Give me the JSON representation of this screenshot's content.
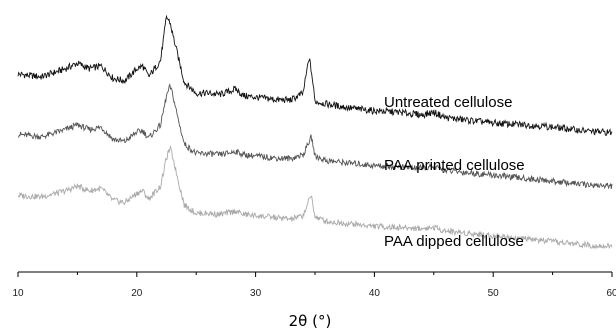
{
  "chart_data": {
    "type": "line",
    "title": "",
    "xlabel": "2θ (°)",
    "ylabel": "",
    "xlim": [
      10,
      60
    ],
    "xticks": [
      10,
      20,
      30,
      40,
      50,
      60
    ],
    "xtick_labels": [
      "10",
      "20",
      "30",
      "40",
      "50",
      "60"
    ],
    "grid": false,
    "legend": "inline-right",
    "note": "Vertically offset XRD patterns; y axis has no scale. Values are relative intensities (arbitrary units) estimated from the traces.",
    "x": [
      10,
      12,
      14,
      15,
      16,
      17,
      18,
      19,
      20,
      20.5,
      21,
      22,
      22.5,
      22.8,
      23,
      23.5,
      24,
      25,
      26,
      27,
      28,
      28.3,
      29,
      30,
      31,
      32,
      33,
      34,
      34.5,
      34.7,
      35,
      36,
      38,
      40,
      42,
      44,
      45,
      46,
      48,
      50,
      52,
      54,
      56,
      58,
      60
    ],
    "series": [
      {
        "name": "Untreated cellulose",
        "color": "#111111",
        "values": [
          58,
          56,
          62,
          66,
          62,
          64,
          55,
          53,
          62,
          64,
          56,
          68,
          100,
          96,
          88,
          70,
          52,
          44,
          44,
          43,
          46,
          47,
          42,
          41,
          40,
          39,
          39,
          44,
          70,
          60,
          38,
          36,
          33,
          31,
          30,
          28,
          30,
          26,
          24,
          22,
          21,
          20,
          18,
          16,
          15
        ]
      },
      {
        "name": "PAA printed cellulose",
        "color": "#555555",
        "values": [
          58,
          56,
          62,
          66,
          62,
          64,
          54,
          52,
          60,
          61,
          55,
          66,
          90,
          98,
          92,
          70,
          50,
          42,
          42,
          41,
          43,
          44,
          41,
          40,
          39,
          38,
          38,
          41,
          52,
          56,
          40,
          36,
          34,
          32,
          31,
          30,
          31,
          28,
          26,
          24,
          22,
          20,
          18,
          16,
          15
        ]
      },
      {
        "name": "PAA dipped cellulose",
        "color": "#aaaaaa",
        "values": [
          58,
          57,
          62,
          66,
          62,
          64,
          54,
          52,
          60,
          62,
          55,
          66,
          90,
          98,
          92,
          70,
          50,
          43,
          43,
          42,
          44,
          45,
          42,
          41,
          40,
          39,
          38,
          41,
          54,
          58,
          40,
          36,
          34,
          32,
          31,
          30,
          31,
          28,
          26,
          24,
          22,
          20,
          18,
          16,
          15
        ]
      }
    ]
  }
}
